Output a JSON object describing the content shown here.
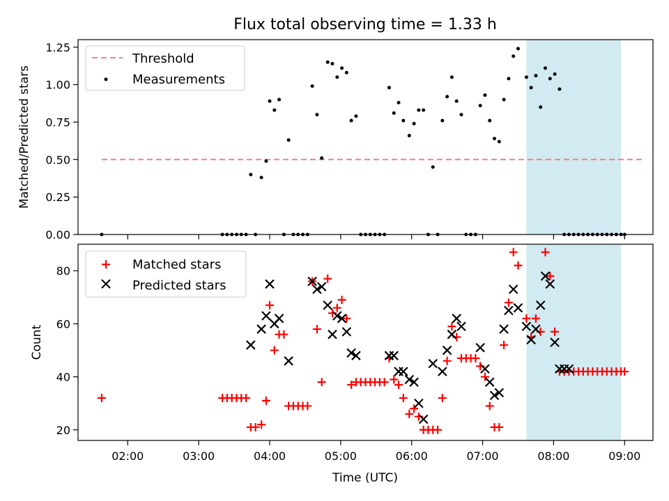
{
  "title": "Flux total observing time = 1.33 h",
  "chart_data": [
    {
      "type": "scatter",
      "panel": "top",
      "title": "Flux total observing time = 1.33 h",
      "xlabel": "",
      "ylabel": "Matched/Predicted stars",
      "x_unit": "minutes after 00:00 UTC",
      "xlim": [
        78,
        564
      ],
      "ylim": [
        0,
        1.3
      ],
      "yticks": [
        0,
        0.25,
        0.5,
        0.75,
        1.0,
        1.25
      ],
      "ytick_labels": [
        "0.00",
        "0.25",
        "0.50",
        "0.75",
        "1.00",
        "1.25"
      ],
      "legend_position": "top-left",
      "highlight_span": [
        457,
        537
      ],
      "highlight_color": "#add8e6",
      "threshold": {
        "name": "Threshold",
        "value": 0.5,
        "x_range": [
          98,
          555
        ],
        "color": "#f08080",
        "style": "dashed"
      },
      "series": [
        {
          "name": "Measurements",
          "color": "#000000",
          "marker": "dot",
          "x": [
            98,
            200,
            204,
            208,
            212,
            216,
            220,
            224,
            228,
            233,
            237,
            240,
            244,
            248,
            252,
            256,
            260,
            264,
            268,
            272,
            276,
            280,
            284,
            289,
            293,
            297,
            301,
            305,
            309,
            313,
            317,
            321,
            325,
            329,
            333,
            337,
            341,
            345,
            349,
            353,
            358,
            362,
            366,
            370,
            374,
            378,
            382,
            386,
            390,
            394,
            398,
            402,
            406,
            410,
            414,
            418,
            422,
            426,
            430,
            434,
            438,
            442,
            446,
            450,
            457,
            461,
            465,
            469,
            473,
            477,
            481,
            485,
            489,
            493,
            497,
            501,
            505,
            509,
            513,
            517,
            521,
            525,
            529,
            533,
            537,
            540
          ],
          "y": [
            0.0,
            0.0,
            0.0,
            0.0,
            0.0,
            0.0,
            0.0,
            0.4,
            0.0,
            0.38,
            0.49,
            0.89,
            0.83,
            0.9,
            0.0,
            0.63,
            0.0,
            0.0,
            0.0,
            0.0,
            0.99,
            0.8,
            0.51,
            1.15,
            1.14,
            1.05,
            1.11,
            1.08,
            0.76,
            0.79,
            0.0,
            0.0,
            0.0,
            0.0,
            0.0,
            0.0,
            0.98,
            0.81,
            0.88,
            0.76,
            0.66,
            0.74,
            0.83,
            0.83,
            0.0,
            0.45,
            0.0,
            0.76,
            0.92,
            1.05,
            0.89,
            0.8,
            0.0,
            0.0,
            0.0,
            0.86,
            0.93,
            0.76,
            0.64,
            0.62,
            0.9,
            1.04,
            1.19,
            1.24,
            1.05,
            0.98,
            1.06,
            0.85,
            1.11,
            1.04,
            1.07,
            0.97,
            0.0,
            0.0,
            0.0,
            0.0,
            0.0,
            0.0,
            0.0,
            0.0,
            0.0,
            0.0,
            0.0,
            0.0,
            0.0,
            0.0
          ]
        }
      ]
    },
    {
      "type": "scatter",
      "panel": "bottom",
      "xlabel": "Time (UTC)",
      "ylabel": "Count",
      "x_unit": "minutes after 00:00 UTC",
      "xlim": [
        78,
        564
      ],
      "ylim": [
        16,
        90
      ],
      "xticks": [
        120,
        180,
        240,
        300,
        360,
        420,
        480,
        540
      ],
      "xtick_labels": [
        "02:00",
        "03:00",
        "04:00",
        "05:00",
        "06:00",
        "07:00",
        "08:00",
        "09:00"
      ],
      "yticks": [
        20,
        40,
        60,
        80
      ],
      "ytick_labels": [
        "20",
        "40",
        "60",
        "80"
      ],
      "legend_position": "top-left",
      "highlight_span": [
        457,
        537
      ],
      "highlight_color": "#add8e6",
      "series": [
        {
          "name": "Matched stars",
          "color": "#ff0000",
          "marker": "plus",
          "x": [
            98,
            200,
            204,
            208,
            212,
            216,
            220,
            224,
            228,
            233,
            237,
            240,
            244,
            248,
            252,
            256,
            260,
            264,
            268,
            272,
            276,
            280,
            284,
            289,
            293,
            297,
            301,
            305,
            309,
            313,
            317,
            321,
            325,
            329,
            333,
            337,
            341,
            345,
            349,
            353,
            358,
            362,
            366,
            370,
            374,
            378,
            382,
            386,
            390,
            394,
            398,
            402,
            406,
            410,
            414,
            418,
            422,
            426,
            430,
            434,
            438,
            442,
            446,
            450,
            457,
            461,
            465,
            469,
            473,
            477,
            481,
            485,
            489,
            493,
            497,
            501,
            505,
            509,
            513,
            517,
            521,
            525,
            529,
            533,
            537,
            540
          ],
          "y": [
            32,
            32,
            32,
            32,
            32,
            32,
            32,
            21,
            21,
            22,
            31,
            67,
            50,
            56,
            56,
            29,
            29,
            29,
            29,
            29,
            76,
            58,
            38,
            77,
            64,
            66,
            69,
            62,
            37,
            38,
            38,
            38,
            38,
            38,
            38,
            38,
            47,
            39,
            37,
            32,
            26,
            28,
            25,
            20,
            20,
            20,
            20,
            32,
            46,
            59,
            55,
            47,
            47,
            47,
            47,
            44,
            40,
            29,
            21,
            21,
            52,
            68,
            87,
            82,
            62,
            55,
            62,
            57,
            87,
            78,
            57,
            42,
            42,
            42,
            42,
            42,
            42,
            42,
            42,
            42,
            42,
            42,
            42,
            42,
            42,
            42
          ]
        },
        {
          "name": "Predicted stars",
          "color": "#000000",
          "marker": "x",
          "x": [
            224,
            233,
            237,
            240,
            244,
            248,
            256,
            276,
            280,
            284,
            289,
            293,
            297,
            301,
            305,
            309,
            313,
            341,
            345,
            349,
            353,
            358,
            362,
            366,
            370,
            378,
            386,
            390,
            394,
            398,
            402,
            418,
            422,
            426,
            430,
            434,
            438,
            442,
            446,
            450,
            457,
            461,
            465,
            469,
            473,
            477,
            481,
            485,
            489,
            493
          ],
          "y": [
            52,
            58,
            63,
            75,
            60,
            62,
            46,
            76,
            73,
            74,
            67,
            56,
            63,
            62,
            57,
            49,
            48,
            48,
            48,
            42,
            42,
            39,
            38,
            30,
            24,
            45,
            42,
            50,
            56,
            62,
            59,
            51,
            43,
            38,
            33,
            34,
            58,
            65,
            73,
            66,
            59,
            54,
            58,
            67,
            78,
            75,
            53,
            43,
            43,
            43
          ]
        }
      ]
    }
  ]
}
